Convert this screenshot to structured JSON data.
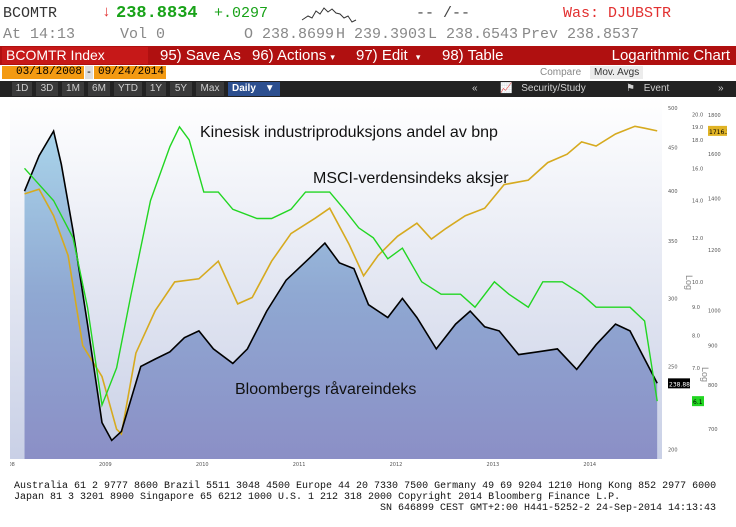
{
  "quote": {
    "ticker": "BCOMTR",
    "direction_arrow": "↓",
    "last": "238.8834",
    "change": "+.0297",
    "bid_ask": "-- /--",
    "was": "Was: DJUBSTR",
    "time": "At 14:13",
    "volume": "Vol 0",
    "open": "O 238.8699",
    "high": "H 239.3903",
    "low": "L 238.6543",
    "prev": "Prev 238.8537"
  },
  "commandbar": {
    "security": "BCOMTR Index",
    "save_as_num": "95)",
    "save_as": "Save As",
    "actions_num": "96)",
    "actions": "Actions",
    "edit_num": "97)",
    "edit": "Edit",
    "table_num": "98)",
    "table": "Table",
    "chart_title": "Logarithmic Chart"
  },
  "dates": {
    "start": "03/18/2008",
    "dash": "-",
    "end": "09/24/2014",
    "compare": "Compare",
    "mov_avgs": "Mov. Avgs"
  },
  "toolbar": {
    "periods": [
      "1D",
      "3D",
      "1M",
      "6M",
      "YTD",
      "1Y",
      "5Y",
      "Max"
    ],
    "frequency": "Daily",
    "frequency_arrow": "▼",
    "collapse": "«",
    "security_study": "Security/Study",
    "event": "Event",
    "expand": "»"
  },
  "chart_data": {
    "type": "line",
    "log_scale": true,
    "annotations": {
      "china": "Kinesisk industriproduksjons andel av bnp",
      "msci": "MSCI-verdensindeks aksjer",
      "bcom": "Bloombergs råvareindeks"
    },
    "x_ticks": [
      "2008",
      "2009",
      "2010",
      "2011",
      "2012",
      "2013",
      "2014"
    ],
    "y_ticks_left": [
      "500",
      "450",
      "400",
      "350",
      "300",
      "250",
      "200"
    ],
    "y_ticks_right1": [
      "20.0",
      "19.0",
      "18.0",
      "16.0",
      "14.0",
      "12.0",
      "10.0",
      "9.0",
      "8.0",
      "7.0"
    ],
    "y_ticks_right2": [
      "1800",
      "1600",
      "1400",
      "1200",
      "1000",
      "900",
      "800",
      "700"
    ],
    "axis_label_right": "Log",
    "last_value_badges": {
      "bcom": "238.8834",
      "msci": "1716.23",
      "china": "6.1"
    },
    "series": [
      {
        "name": "Bloombergs råvareindeks",
        "color": "#000000",
        "fill": "#8fa3cc",
        "values": [
          [
            2008.2,
            400
          ],
          [
            2008.35,
            440
          ],
          [
            2008.5,
            470
          ],
          [
            2008.58,
            430
          ],
          [
            2008.7,
            360
          ],
          [
            2008.85,
            280
          ],
          [
            2009.0,
            215
          ],
          [
            2009.1,
            205
          ],
          [
            2009.2,
            210
          ],
          [
            2009.4,
            250
          ],
          [
            2009.55,
            255
          ],
          [
            2009.7,
            260
          ],
          [
            2009.85,
            270
          ],
          [
            2010.0,
            275
          ],
          [
            2010.15,
            262
          ],
          [
            2010.35,
            252
          ],
          [
            2010.5,
            262
          ],
          [
            2010.7,
            290
          ],
          [
            2010.9,
            315
          ],
          [
            2011.15,
            335
          ],
          [
            2011.3,
            348
          ],
          [
            2011.45,
            330
          ],
          [
            2011.6,
            325
          ],
          [
            2011.75,
            295
          ],
          [
            2011.95,
            285
          ],
          [
            2012.1,
            300
          ],
          [
            2012.25,
            285
          ],
          [
            2012.45,
            262
          ],
          [
            2012.65,
            280
          ],
          [
            2012.8,
            290
          ],
          [
            2012.95,
            278
          ],
          [
            2013.1,
            275
          ],
          [
            2013.3,
            258
          ],
          [
            2013.5,
            260
          ],
          [
            2013.7,
            262
          ],
          [
            2013.9,
            248
          ],
          [
            2014.1,
            265
          ],
          [
            2014.3,
            280
          ],
          [
            2014.45,
            275
          ],
          [
            2014.6,
            255
          ],
          [
            2014.73,
            239
          ]
        ]
      },
      {
        "name": "MSCI-verdensindeks aksjer",
        "color": "#d6aa1f",
        "values": [
          [
            2008.2,
            1420
          ],
          [
            2008.35,
            1440
          ],
          [
            2008.5,
            1330
          ],
          [
            2008.65,
            1180
          ],
          [
            2008.8,
            900
          ],
          [
            2009.0,
            820
          ],
          [
            2009.15,
            700
          ],
          [
            2009.2,
            690
          ],
          [
            2009.35,
            880
          ],
          [
            2009.55,
            1000
          ],
          [
            2009.75,
            1090
          ],
          [
            2010.0,
            1100
          ],
          [
            2010.2,
            1160
          ],
          [
            2010.4,
            1020
          ],
          [
            2010.55,
            1040
          ],
          [
            2010.75,
            1160
          ],
          [
            2010.95,
            1260
          ],
          [
            2011.2,
            1320
          ],
          [
            2011.35,
            1360
          ],
          [
            2011.55,
            1220
          ],
          [
            2011.7,
            1110
          ],
          [
            2011.85,
            1180
          ],
          [
            2012.05,
            1250
          ],
          [
            2012.25,
            1300
          ],
          [
            2012.4,
            1240
          ],
          [
            2012.55,
            1280
          ],
          [
            2012.75,
            1330
          ],
          [
            2012.95,
            1360
          ],
          [
            2013.15,
            1460
          ],
          [
            2013.4,
            1480
          ],
          [
            2013.6,
            1560
          ],
          [
            2013.8,
            1600
          ],
          [
            2013.95,
            1660
          ],
          [
            2014.1,
            1640
          ],
          [
            2014.3,
            1700
          ],
          [
            2014.5,
            1740
          ],
          [
            2014.6,
            1730
          ],
          [
            2014.73,
            1716
          ]
        ]
      },
      {
        "name": "Kinesisk industriproduksjons andel av bnp",
        "color": "#22d622",
        "values": [
          [
            2008.2,
            16.0
          ],
          [
            2008.5,
            14.0
          ],
          [
            2008.7,
            12.0
          ],
          [
            2008.85,
            9.0
          ],
          [
            2009.0,
            6.0
          ],
          [
            2009.15,
            7.0
          ],
          [
            2009.3,
            9.5
          ],
          [
            2009.5,
            14.0
          ],
          [
            2009.7,
            17.5
          ],
          [
            2009.8,
            19.0
          ],
          [
            2009.9,
            18.0
          ],
          [
            2010.05,
            14.5
          ],
          [
            2010.2,
            14.5
          ],
          [
            2010.35,
            13.5
          ],
          [
            2010.6,
            13.0
          ],
          [
            2010.75,
            13.0
          ],
          [
            2010.95,
            13.5
          ],
          [
            2011.1,
            14.5
          ],
          [
            2011.35,
            14.5
          ],
          [
            2011.5,
            13.5
          ],
          [
            2011.65,
            12.5
          ],
          [
            2011.8,
            12.0
          ],
          [
            2011.95,
            11.0
          ],
          [
            2012.1,
            11.5
          ],
          [
            2012.3,
            10.0
          ],
          [
            2012.5,
            9.5
          ],
          [
            2012.7,
            9.5
          ],
          [
            2012.85,
            9.0
          ],
          [
            2013.05,
            10.0
          ],
          [
            2013.2,
            9.5
          ],
          [
            2013.4,
            9.0
          ],
          [
            2013.55,
            10.0
          ],
          [
            2013.75,
            10.0
          ],
          [
            2013.95,
            9.5
          ],
          [
            2014.1,
            9.0
          ],
          [
            2014.3,
            9.0
          ],
          [
            2014.45,
            9.0
          ],
          [
            2014.6,
            8.5
          ],
          [
            2014.73,
            6.1
          ]
        ]
      }
    ]
  },
  "footer": {
    "line1": "Australia 61 2 9777 8600 Brazil 5511 3048 4500 Europe 44 20 7330 7500 Germany 49 69 9204 1210 Hong Kong 852 2977 6000",
    "line2": "Japan 81 3 3201 8900       Singapore 65 6212 1000       U.S. 1 212 318 2000          Copyright 2014 Bloomberg Finance L.P.",
    "line3": "SN 646899 CEST GMT+2:00 H441-5252-2 24-Sep-2014 14:13:43"
  }
}
